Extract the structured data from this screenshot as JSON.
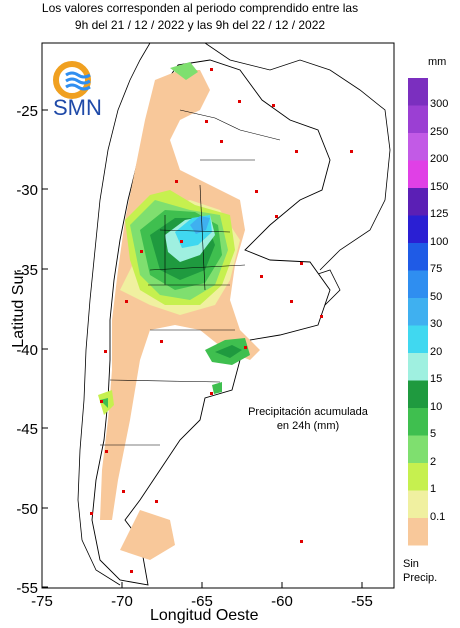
{
  "title": {
    "line1": "Los valores corresponden al periodo comprendido entre las",
    "line2": "9h del 21 / 12 / 2022  y las 9h del 22 / 12 / 2022"
  },
  "logo": {
    "text": "SMN"
  },
  "axes": {
    "ylabel": "Latitud Sur",
    "xlabel": "Longitud Oeste",
    "yticks": [
      "-25",
      "-30",
      "-35",
      "-40",
      "-45",
      "-50",
      "-55"
    ],
    "xticks": [
      "-75",
      "-70",
      "-65",
      "-60",
      "-55"
    ]
  },
  "legend": {
    "unit": "mm",
    "no_precip_label": "Sin\nPrecip.",
    "levels": [
      {
        "label": "300",
        "color": "#7b2fbf"
      },
      {
        "label": "250",
        "color": "#9b3fd3"
      },
      {
        "label": "200",
        "color": "#c25ae6"
      },
      {
        "label": "150",
        "color": "#e040e6"
      },
      {
        "label": "125",
        "color": "#5b1fb5"
      },
      {
        "label": "100",
        "color": "#2a1fd3"
      },
      {
        "label": "75",
        "color": "#1f5be6"
      },
      {
        "label": "50",
        "color": "#2f8ef0"
      },
      {
        "label": "30",
        "color": "#3fb0f0"
      },
      {
        "label": "20",
        "color": "#40d8f0"
      },
      {
        "label": "15",
        "color": "#9ff0e0"
      },
      {
        "label": "10",
        "color": "#1f9a3f"
      },
      {
        "label": "5",
        "color": "#3fbf4f"
      },
      {
        "label": "2",
        "color": "#7fdf6f"
      },
      {
        "label": "1",
        "color": "#c6f04f"
      },
      {
        "label": "0.1",
        "color": "#f0f0a0"
      },
      {
        "label": "",
        "color": "#f8c89a"
      }
    ]
  },
  "caption": {
    "line1": "Precipitación acumulada",
    "line2": "en 24h (mm)"
  }
}
